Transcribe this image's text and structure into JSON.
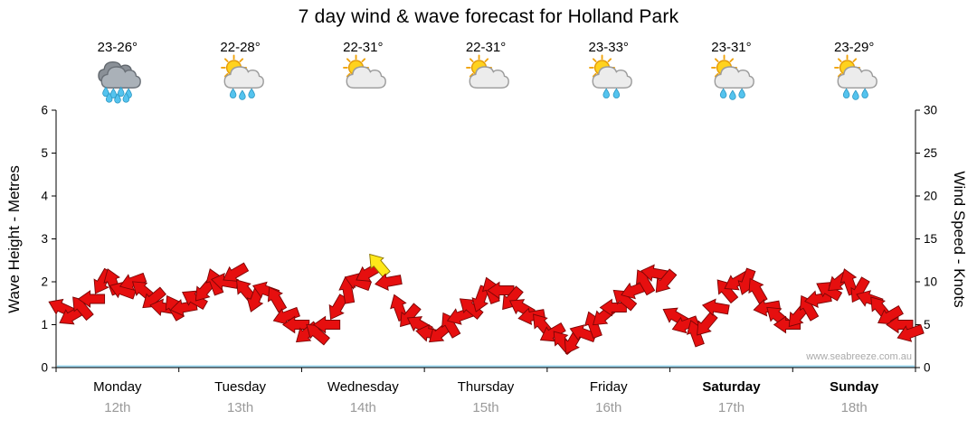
{
  "title": "7 day wind & wave forecast for Holland Park",
  "watermark": "www.seabreeze.com.au",
  "days": [
    {
      "name": "Monday",
      "date": "12th",
      "temp": "23-26°",
      "weekend": false,
      "icon": {
        "sun": false,
        "cloud": "dark",
        "drops": 7
      }
    },
    {
      "name": "Tuesday",
      "date": "13th",
      "temp": "22-28°",
      "weekend": false,
      "icon": {
        "sun": true,
        "cloud": "light",
        "drops": 3
      }
    },
    {
      "name": "Wednesday",
      "date": "14th",
      "temp": "22-31°",
      "weekend": false,
      "icon": {
        "sun": true,
        "cloud": "light",
        "drops": 0
      }
    },
    {
      "name": "Thursday",
      "date": "15th",
      "temp": "22-31°",
      "weekend": false,
      "icon": {
        "sun": true,
        "cloud": "light",
        "drops": 0
      }
    },
    {
      "name": "Friday",
      "date": "16th",
      "temp": "23-33°",
      "weekend": false,
      "icon": {
        "sun": true,
        "cloud": "light",
        "drops": 2
      }
    },
    {
      "name": "Saturday",
      "date": "17th",
      "temp": "23-31°",
      "weekend": true,
      "icon": {
        "sun": true,
        "cloud": "light",
        "drops": 3
      }
    },
    {
      "name": "Sunday",
      "date": "18th",
      "temp": "23-29°",
      "weekend": true,
      "icon": {
        "sun": true,
        "cloud": "light",
        "drops": 3
      }
    }
  ],
  "chart_data": {
    "type": "line",
    "style": "wind-arrow-series",
    "title": "7 day wind & wave forecast for Holland Park",
    "left_axis": {
      "label": "Wave Height - Metres",
      "min": 0,
      "max": 6,
      "ticks": [
        0,
        1,
        2,
        3,
        4,
        5,
        6
      ]
    },
    "right_axis": {
      "label": "Wind Speed - Knots",
      "min": 0,
      "max": 30,
      "ticks": [
        0,
        5,
        10,
        15,
        20,
        25,
        30
      ]
    },
    "x_categories": [
      "Monday 12th",
      "Tuesday 13th",
      "Wednesday 14th",
      "Thursday 15th",
      "Friday 16th",
      "Saturday 17th",
      "Sunday 18th"
    ],
    "points_per_day": 12,
    "grid": false,
    "legend": "none",
    "series": [
      {
        "name": "Wind Speed",
        "unit": "knots",
        "style": "wind-arrows",
        "values": [
          7,
          6,
          7,
          8,
          10,
          10,
          9,
          10,
          9,
          8,
          7,
          7,
          7,
          8,
          9,
          10,
          10,
          11,
          9,
          8,
          9,
          8,
          6,
          5,
          4,
          4,
          5,
          7,
          9,
          10,
          11,
          12,
          10,
          7,
          6,
          5,
          4,
          4,
          5,
          6,
          7,
          8,
          9,
          9,
          8,
          7,
          6,
          5,
          4,
          3,
          3,
          4,
          5,
          6,
          7,
          8,
          9,
          10,
          11,
          10,
          6,
          5,
          4,
          5,
          7,
          9,
          10,
          10,
          9,
          7,
          6,
          5,
          6,
          7,
          8,
          9,
          10,
          10,
          9,
          8,
          7,
          6,
          5,
          4
        ],
        "directions_deg": [
          205,
          150,
          230,
          180,
          120,
          250,
          200,
          160,
          220,
          140,
          190,
          240,
          170,
          210,
          130,
          250,
          190,
          150,
          230,
          110,
          200,
          240,
          160,
          180,
          140,
          220,
          180,
          120,
          260,
          200,
          150,
          230,
          170,
          250,
          130,
          210,
          190,
          140,
          240,
          160,
          220,
          110,
          250,
          180,
          130,
          210,
          170,
          230,
          150,
          230,
          120,
          200,
          250,
          140,
          180,
          220,
          160,
          240,
          190,
          130,
          210,
          160,
          250,
          130,
          190,
          230,
          150,
          110,
          240,
          170,
          220,
          180,
          130,
          240,
          170,
          210,
          140,
          250,
          120,
          200,
          230,
          150,
          180,
          160
        ],
        "colors": {
          "light": "#e60f0f",
          "strong": "#ffe81a",
          "strong_threshold_knots": 12
        }
      },
      {
        "name": "Wave Height",
        "unit": "metres",
        "style": "line",
        "color": "#9fd9ef",
        "constant_value": 0
      }
    ]
  }
}
